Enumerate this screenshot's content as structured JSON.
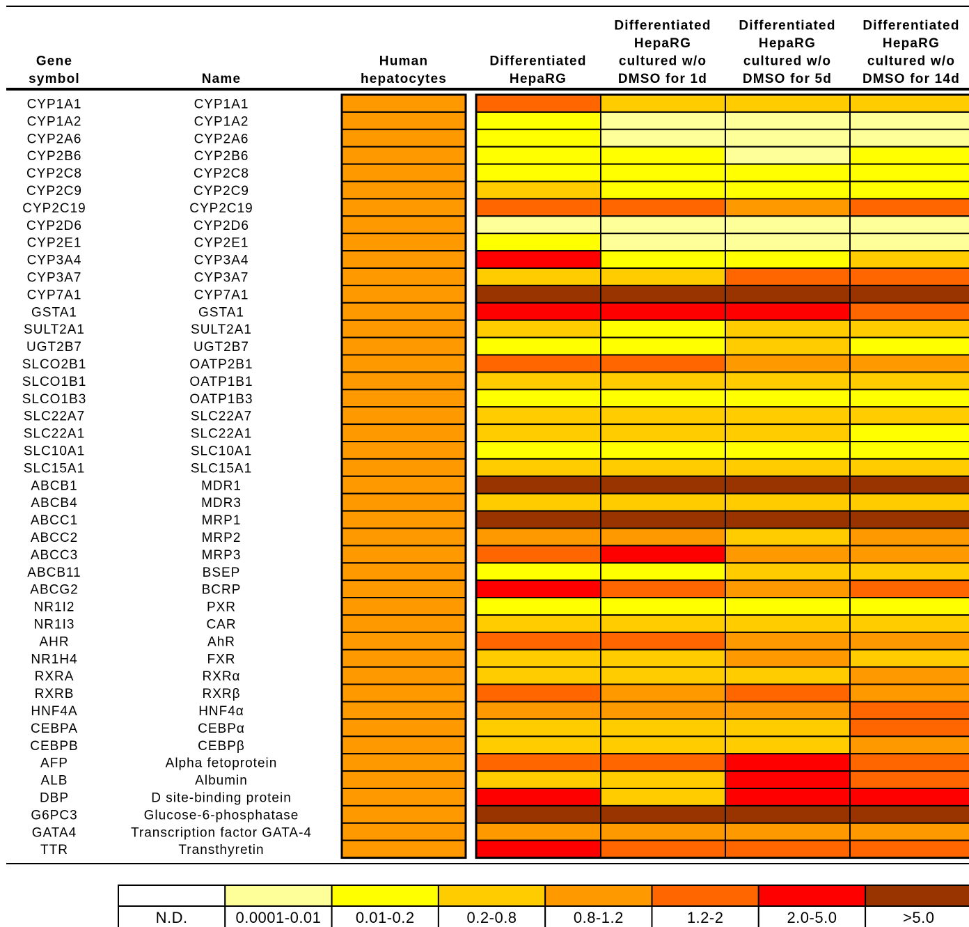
{
  "chart_data": {
    "type": "heatmap",
    "header": {
      "gene_symbol": [
        "Gene",
        "symbol"
      ],
      "name": [
        "Name"
      ],
      "columns": [
        [
          "Human",
          "hepatocytes"
        ],
        [
          "Differentiated",
          "HepaRG"
        ],
        [
          "Differentiated",
          "HepaRG",
          "cultured w/o",
          "DMSO for 1d"
        ],
        [
          "Differentiated",
          "HepaRG",
          "cultured w/o",
          "DMSO for 5d"
        ],
        [
          "Differentiated",
          "HepaRG",
          "cultured w/o",
          "DMSO for 14d"
        ]
      ]
    },
    "legend": {
      "categories": [
        "N.D.",
        "0.0001-0.01",
        "0.01-0.2",
        "0.2-0.8",
        "0.8-1.2",
        "1.2-2",
        "2.0-5.0",
        ">5.0"
      ],
      "colors": [
        "#ffffff",
        "#ffff99",
        "#ffff00",
        "#ffcc00",
        "#ff9900",
        "#ff6600",
        "#ff0000",
        "#993300"
      ]
    },
    "rows": [
      {
        "symbol": "CYP1A1",
        "name": "CYP1A1",
        "levels": [
          4,
          5,
          3,
          3,
          3
        ]
      },
      {
        "symbol": "CYP1A2",
        "name": "CYP1A2",
        "levels": [
          4,
          2,
          1,
          1,
          1
        ]
      },
      {
        "symbol": "CYP2A6",
        "name": "CYP2A6",
        "levels": [
          4,
          2,
          1,
          1,
          1
        ]
      },
      {
        "symbol": "CYP2B6",
        "name": "CYP2B6",
        "levels": [
          4,
          2,
          2,
          1,
          2
        ]
      },
      {
        "symbol": "CYP2C8",
        "name": "CYP2C8",
        "levels": [
          4,
          2,
          2,
          2,
          2
        ]
      },
      {
        "symbol": "CYP2C9",
        "name": "CYP2C9",
        "levels": [
          4,
          3,
          2,
          2,
          2
        ]
      },
      {
        "symbol": "CYP2C19",
        "name": "CYP2C19",
        "levels": [
          4,
          5,
          5,
          4,
          5
        ]
      },
      {
        "symbol": "CYP2D6",
        "name": "CYP2D6",
        "levels": [
          4,
          1,
          1,
          1,
          1
        ]
      },
      {
        "symbol": "CYP2E1",
        "name": "CYP2E1",
        "levels": [
          4,
          2,
          1,
          1,
          1
        ]
      },
      {
        "symbol": "CYP3A4",
        "name": "CYP3A4",
        "levels": [
          4,
          6,
          2,
          2,
          3
        ]
      },
      {
        "symbol": "CYP3A7",
        "name": "CYP3A7",
        "levels": [
          4,
          3,
          3,
          5,
          5
        ]
      },
      {
        "symbol": "CYP7A1",
        "name": "CYP7A1",
        "levels": [
          4,
          7,
          7,
          7,
          7
        ]
      },
      {
        "symbol": "GSTA1",
        "name": "GSTA1",
        "levels": [
          4,
          6,
          6,
          6,
          5
        ]
      },
      {
        "symbol": "SULT2A1",
        "name": "SULT2A1",
        "levels": [
          4,
          3,
          2,
          3,
          3
        ]
      },
      {
        "symbol": "UGT2B7",
        "name": "UGT2B7",
        "levels": [
          4,
          2,
          2,
          3,
          2
        ]
      },
      {
        "symbol": "SLCO2B1",
        "name": "OATP2B1",
        "levels": [
          4,
          5,
          5,
          4,
          4
        ]
      },
      {
        "symbol": "SLCO1B1",
        "name": "OATP1B1",
        "levels": [
          4,
          3,
          3,
          3,
          3
        ]
      },
      {
        "symbol": "SLCO1B3",
        "name": "OATP1B3",
        "levels": [
          4,
          2,
          2,
          2,
          2
        ]
      },
      {
        "symbol": "SLC22A7",
        "name": "SLC22A7",
        "levels": [
          4,
          3,
          3,
          3,
          3
        ]
      },
      {
        "symbol": "SLC22A1",
        "name": "SLC22A1",
        "levels": [
          4,
          3,
          3,
          3,
          2
        ]
      },
      {
        "symbol": "SLC10A1",
        "name": "SLC10A1",
        "levels": [
          4,
          2,
          2,
          2,
          2
        ]
      },
      {
        "symbol": "SLC15A1",
        "name": "SLC15A1",
        "levels": [
          4,
          3,
          3,
          3,
          3
        ]
      },
      {
        "symbol": "ABCB1",
        "name": "MDR1",
        "levels": [
          4,
          7,
          7,
          7,
          7
        ]
      },
      {
        "symbol": "ABCB4",
        "name": "MDR3",
        "levels": [
          4,
          3,
          3,
          3,
          3
        ]
      },
      {
        "symbol": "ABCC1",
        "name": "MRP1",
        "levels": [
          4,
          7,
          7,
          7,
          7
        ]
      },
      {
        "symbol": "ABCC2",
        "name": "MRP2",
        "levels": [
          4,
          4,
          4,
          3,
          4
        ]
      },
      {
        "symbol": "ABCC3",
        "name": "MRP3",
        "levels": [
          4,
          5,
          6,
          4,
          4
        ]
      },
      {
        "symbol": "ABCB11",
        "name": "BSEP",
        "levels": [
          4,
          2,
          2,
          3,
          3
        ]
      },
      {
        "symbol": "ABCG2",
        "name": "BCRP",
        "levels": [
          4,
          6,
          5,
          4,
          5
        ]
      },
      {
        "symbol": "NR1I2",
        "name": "PXR",
        "levels": [
          4,
          2,
          2,
          2,
          2
        ]
      },
      {
        "symbol": "NR1I3",
        "name": "CAR",
        "levels": [
          4,
          3,
          3,
          3,
          3
        ]
      },
      {
        "symbol": "AHR",
        "name": "AhR",
        "levels": [
          4,
          5,
          5,
          4,
          4
        ]
      },
      {
        "symbol": "NR1H4",
        "name": "FXR",
        "levels": [
          4,
          3,
          3,
          4,
          3
        ]
      },
      {
        "symbol": "RXRA",
        "name": "RXRα",
        "levels": [
          4,
          3,
          3,
          3,
          4
        ]
      },
      {
        "symbol": "RXRB",
        "name": "RXRβ",
        "levels": [
          4,
          5,
          4,
          5,
          4
        ]
      },
      {
        "symbol": "HNF4A",
        "name": "HNF4α",
        "levels": [
          4,
          4,
          4,
          4,
          5
        ]
      },
      {
        "symbol": "CEBPA",
        "name": "CEBPα",
        "levels": [
          4,
          3,
          3,
          3,
          5
        ]
      },
      {
        "symbol": "CEBPB",
        "name": "CEBPβ",
        "levels": [
          4,
          3,
          3,
          3,
          4
        ]
      },
      {
        "symbol": "AFP",
        "name": "Alpha fetoprotein",
        "levels": [
          4,
          5,
          5,
          6,
          5
        ]
      },
      {
        "symbol": "ALB",
        "name": "Albumin",
        "levels": [
          4,
          3,
          3,
          6,
          5
        ]
      },
      {
        "symbol": "DBP",
        "name": "D site-binding protein",
        "levels": [
          4,
          6,
          3,
          6,
          6
        ]
      },
      {
        "symbol": "G6PC3",
        "name": "Glucose-6-phosphatase",
        "levels": [
          4,
          7,
          7,
          7,
          7
        ]
      },
      {
        "symbol": "GATA4",
        "name": "Transcription factor GATA-4",
        "levels": [
          4,
          4,
          4,
          4,
          4
        ]
      },
      {
        "symbol": "TTR",
        "name": "Transthyretin",
        "levels": [
          4,
          6,
          5,
          5,
          5
        ]
      }
    ]
  }
}
